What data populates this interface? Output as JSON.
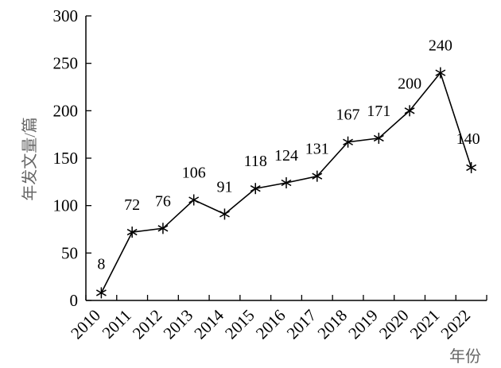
{
  "chart_data": {
    "type": "line",
    "x": [
      "2010",
      "2011",
      "2012",
      "2013",
      "2014",
      "2015",
      "2016",
      "2017",
      "2018",
      "2019",
      "2020",
      "2021",
      "2022"
    ],
    "values": [
      8,
      72,
      76,
      106,
      91,
      118,
      124,
      131,
      167,
      171,
      200,
      240,
      140
    ],
    "data_labels": [
      "8",
      "72",
      "76",
      "106",
      "91",
      "118",
      "124",
      "131",
      "167",
      "171",
      "200",
      "240",
      "140"
    ],
    "ylabel": "年发文量/篇",
    "xlabel": "年份",
    "ylim": [
      0,
      300
    ],
    "yticks": [
      "0",
      "50",
      "100",
      "150",
      "200",
      "250",
      "300"
    ],
    "marker": "asterisk",
    "grid": false,
    "legend": "none",
    "line_color": "#000000"
  }
}
